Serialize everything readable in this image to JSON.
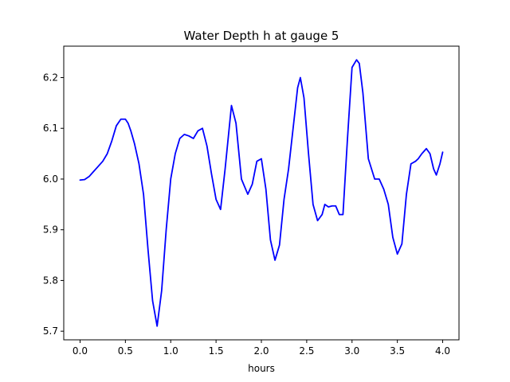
{
  "chart_data": {
    "type": "line",
    "title": "Water Depth h at gauge 5",
    "xlabel": "hours",
    "ylabel": "",
    "xlim": [
      -0.18,
      4.18
    ],
    "ylim": [
      5.683,
      6.262
    ],
    "xticks": [
      0.0,
      0.5,
      1.0,
      1.5,
      2.0,
      2.5,
      3.0,
      3.5,
      4.0
    ],
    "xtick_labels": [
      "0.0",
      "0.5",
      "1.0",
      "1.5",
      "2.0",
      "2.5",
      "3.0",
      "3.5",
      "4.0"
    ],
    "yticks": [
      5.7,
      5.8,
      5.9,
      6.0,
      6.1,
      6.2
    ],
    "ytick_labels": [
      "5.7",
      "5.8",
      "5.9",
      "6.0",
      "6.1",
      "6.2"
    ],
    "grid": false,
    "series": [
      {
        "color": "#0000ff",
        "x": [
          0.0,
          0.05,
          0.1,
          0.15,
          0.2,
          0.25,
          0.3,
          0.35,
          0.4,
          0.45,
          0.5,
          0.53,
          0.56,
          0.6,
          0.65,
          0.7,
          0.75,
          0.8,
          0.85,
          0.9,
          0.95,
          1.0,
          1.05,
          1.1,
          1.15,
          1.2,
          1.25,
          1.3,
          1.35,
          1.4,
          1.45,
          1.5,
          1.55,
          1.6,
          1.67,
          1.72,
          1.78,
          1.85,
          1.9,
          1.95,
          2.0,
          2.05,
          2.1,
          2.15,
          2.2,
          2.25,
          2.3,
          2.35,
          2.4,
          2.43,
          2.47,
          2.52,
          2.57,
          2.62,
          2.67,
          2.7,
          2.74,
          2.78,
          2.82,
          2.86,
          2.9,
          2.95,
          3.0,
          3.05,
          3.08,
          3.12,
          3.18,
          3.25,
          3.3,
          3.35,
          3.4,
          3.45,
          3.5,
          3.55,
          3.6,
          3.65,
          3.7,
          3.73,
          3.77,
          3.82,
          3.86,
          3.9,
          3.93,
          3.97,
          4.0
        ],
        "y": [
          5.998,
          5.999,
          6.005,
          6.015,
          6.025,
          6.035,
          6.05,
          6.075,
          6.105,
          6.118,
          6.118,
          6.11,
          6.095,
          6.07,
          6.03,
          5.97,
          5.86,
          5.76,
          5.71,
          5.78,
          5.9,
          6.0,
          6.05,
          6.08,
          6.088,
          6.085,
          6.08,
          6.095,
          6.1,
          6.065,
          6.01,
          5.96,
          5.94,
          6.02,
          6.145,
          6.11,
          6.0,
          5.97,
          5.99,
          6.035,
          6.04,
          5.98,
          5.88,
          5.84,
          5.87,
          5.96,
          6.02,
          6.1,
          6.18,
          6.2,
          6.16,
          6.05,
          5.95,
          5.918,
          5.93,
          5.95,
          5.945,
          5.947,
          5.947,
          5.93,
          5.93,
          6.08,
          6.22,
          6.235,
          6.228,
          6.17,
          6.04,
          6.0,
          6.0,
          5.98,
          5.95,
          5.885,
          5.852,
          5.872,
          5.97,
          6.03,
          6.035,
          6.04,
          6.05,
          6.06,
          6.05,
          6.02,
          6.008,
          6.03,
          6.053
        ]
      }
    ]
  }
}
